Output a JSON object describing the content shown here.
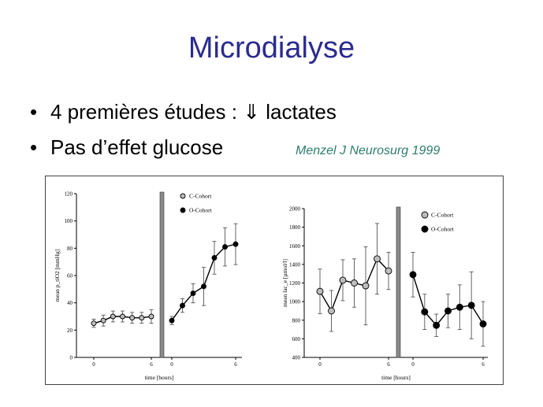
{
  "slide": {
    "title": "Microdialyse",
    "bullets": [
      {
        "marker": "•",
        "text_before": "4 premières études : ",
        "arrow": "⇓",
        "text_after": " lactates"
      },
      {
        "marker": "•",
        "text_before": "Pas d’effet glucose",
        "arrow": "",
        "text_after": ""
      }
    ],
    "citation": "Menzel J Neurosurg 1999"
  },
  "colors": {
    "title": "#2b2b8f",
    "citation": "#2e7d6b",
    "c_cohort": "#bdbdbd",
    "o_cohort": "#000000"
  },
  "chart_data": [
    {
      "type": "line",
      "ylabel": "mean p_tiO2 [mmHg]",
      "xlabel": "time [hours]",
      "ylim": [
        0,
        120
      ],
      "yticks": [
        0,
        20,
        40,
        60,
        80,
        100,
        120
      ],
      "xticks_left": [
        0,
        6
      ],
      "xticks_right": [
        0,
        6
      ],
      "legend": [
        "C-Cohort",
        "O-Cohort"
      ],
      "series": [
        {
          "name": "C-Cohort",
          "x": [
            0,
            1,
            2,
            3,
            4,
            5,
            6
          ],
          "values": [
            25,
            27,
            30,
            30,
            29,
            29,
            30
          ],
          "err": [
            3,
            4,
            4,
            4,
            4,
            4,
            5
          ]
        },
        {
          "name": "O-Cohort",
          "x": [
            0,
            1,
            2,
            3,
            4,
            5,
            6
          ],
          "values": [
            27,
            38,
            47,
            52,
            73,
            81,
            83
          ],
          "err": [
            3,
            5,
            7,
            14,
            12,
            14,
            15
          ]
        }
      ]
    },
    {
      "type": "line",
      "ylabel": "mean lac_e [µmol/l]",
      "xlabel": "time [hours]",
      "ylim": [
        400,
        2000
      ],
      "yticks": [
        400,
        600,
        800,
        1000,
        1200,
        1400,
        1600,
        1800,
        2000
      ],
      "xticks_left": [
        0,
        6
      ],
      "xticks_right": [
        0,
        6
      ],
      "legend": [
        "C-Cohort",
        "O-Cohort"
      ],
      "series": [
        {
          "name": "C-Cohort",
          "x": [
            0,
            1,
            2,
            3,
            4,
            5,
            6
          ],
          "values": [
            1110,
            900,
            1230,
            1200,
            1170,
            1460,
            1330
          ],
          "err": [
            240,
            220,
            220,
            260,
            420,
            380,
            200
          ]
        },
        {
          "name": "O-Cohort",
          "x": [
            0,
            1,
            2,
            3,
            4,
            5,
            6
          ],
          "values": [
            1290,
            890,
            745,
            900,
            940,
            960,
            760
          ],
          "err": [
            240,
            190,
            120,
            180,
            240,
            360,
            240
          ]
        }
      ]
    }
  ]
}
